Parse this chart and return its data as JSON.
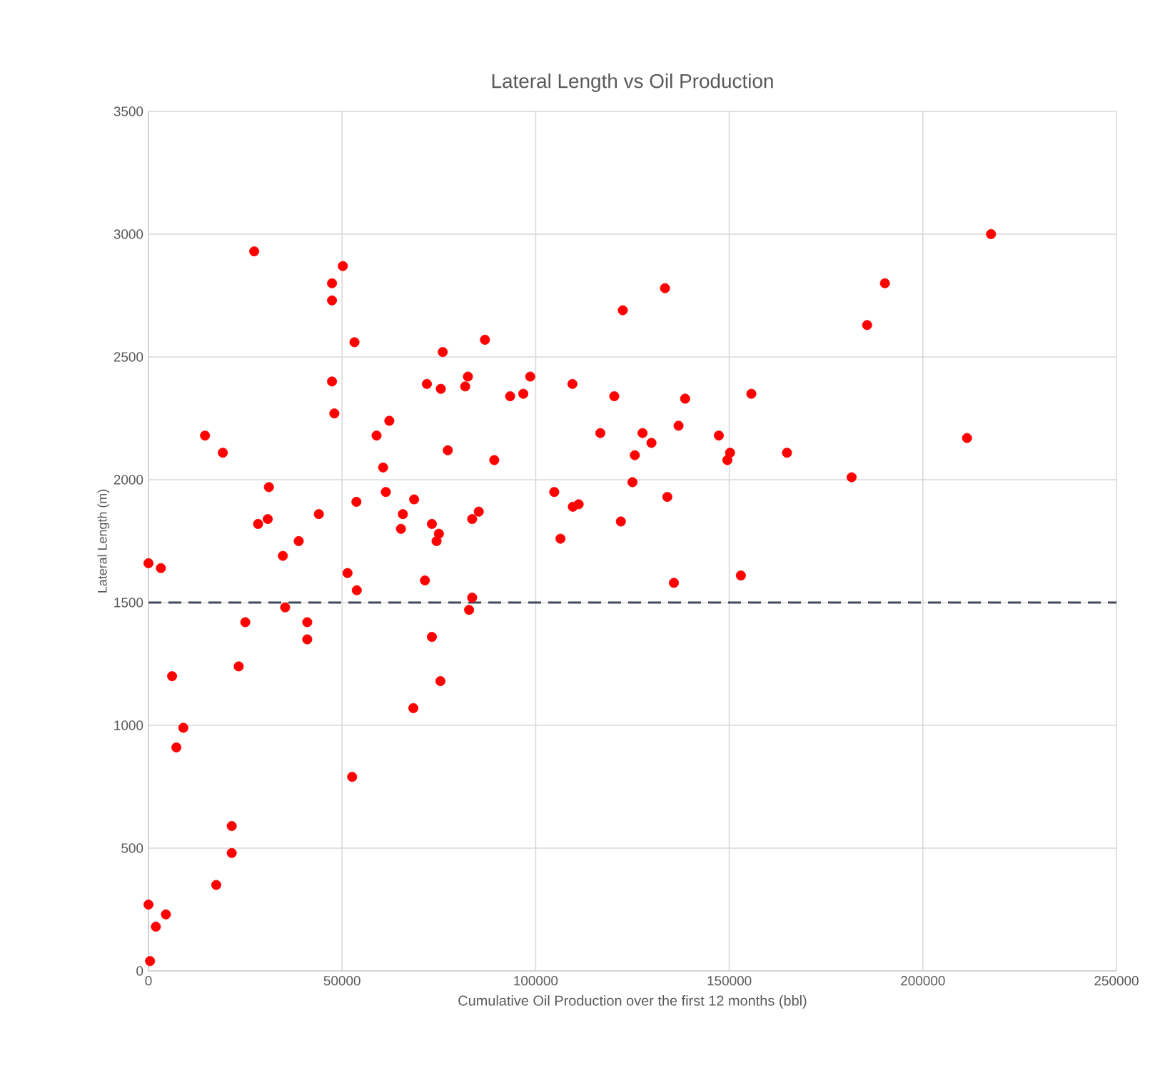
{
  "chart_data": {
    "type": "scatter",
    "title": "Lateral Length vs Oil Production",
    "xlabel": "Cumulative Oil Production over the first 12 months (bbl)",
    "ylabel": "Lateral Length (m)",
    "xlim": [
      0,
      250000
    ],
    "xticks": [
      0,
      50000,
      100000,
      150000,
      200000,
      250000
    ],
    "ylim": [
      0,
      3500
    ],
    "yticks": [
      0,
      500,
      1000,
      1500,
      2000,
      2500,
      3000,
      3500
    ],
    "grid": true,
    "marker": "circle",
    "ref_lines": [
      {
        "axis": "y",
        "value": 1500,
        "label": null,
        "color": "#404a5a",
        "line_style": "dashed"
      }
    ],
    "series": [
      {
        "color": "#ff0000",
        "x": [
          27300,
          50200,
          47400,
          47400,
          53200,
          86900,
          76000,
          47400,
          71900,
          75500,
          82500,
          81800,
          48000,
          62200,
          58900,
          14600,
          19200,
          77300,
          60600,
          61300,
          53700,
          68600,
          31100,
          30800,
          28300,
          44000,
          65700,
          65200,
          73200,
          75000,
          74400,
          85300,
          83600,
          38800,
          34700,
          0,
          3200,
          51400,
          53800,
          71400,
          83600,
          82800,
          35300,
          25000,
          41000,
          41000,
          73200,
          217600,
          133400,
          190200,
          122500,
          185600,
          98600,
          93400,
          96800,
          109500,
          120300,
          138600,
          155700,
          116700,
          127600,
          129900,
          136900,
          147300,
          150200,
          149500,
          164900,
          211400,
          125600,
          89300,
          181600,
          125000,
          104800,
          109600,
          111100,
          134000,
          122000,
          106400,
          135700,
          153000,
          6100,
          23300,
          75400,
          68400,
          9000,
          7200,
          52600,
          21500,
          21500,
          17500,
          0,
          4500,
          1900,
          400
        ],
        "values": [
          2930,
          2870,
          2800,
          2730,
          2560,
          2570,
          2520,
          2400,
          2390,
          2370,
          2420,
          2380,
          2270,
          2240,
          2180,
          2180,
          2110,
          2120,
          2050,
          1950,
          1910,
          1920,
          1970,
          1840,
          1820,
          1860,
          1860,
          1800,
          1820,
          1780,
          1750,
          1870,
          1840,
          1750,
          1690,
          1660,
          1640,
          1620,
          1550,
          1590,
          1520,
          1470,
          1480,
          1420,
          1420,
          1350,
          1360,
          3000,
          2780,
          2800,
          2690,
          2630,
          2420,
          2340,
          2350,
          2390,
          2340,
          2330,
          2350,
          2190,
          2190,
          2150,
          2220,
          2180,
          2110,
          2080,
          2110,
          2170,
          2100,
          2080,
          2010,
          1990,
          1950,
          1890,
          1900,
          1930,
          1830,
          1760,
          1580,
          1610,
          1200,
          1240,
          1180,
          1070,
          990,
          910,
          790,
          590,
          480,
          350,
          270,
          230,
          180,
          40
        ]
      }
    ]
  }
}
